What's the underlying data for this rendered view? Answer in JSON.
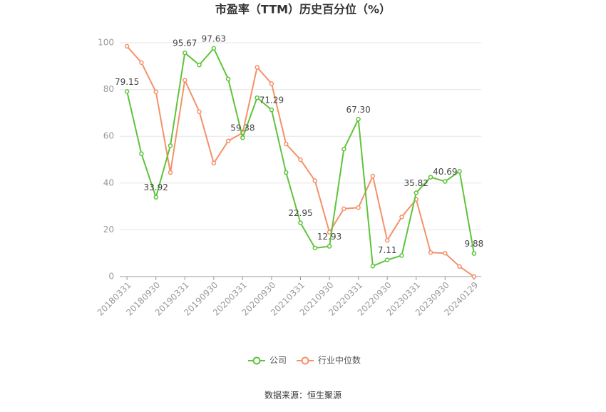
{
  "chart_data": {
    "type": "line",
    "title": "市盈率（TTM）历史百分位（%）",
    "categories": [
      "20180331",
      null,
      "20180930",
      null,
      "20190331",
      null,
      "20190930",
      null,
      "20200331",
      null,
      "20200930",
      null,
      "20210331",
      null,
      "20210930",
      null,
      "20220331",
      null,
      "20220930",
      null,
      "20230331",
      null,
      "20230930",
      null,
      "20240129"
    ],
    "series": [
      {
        "name": "公司",
        "color": "#5ec43a",
        "values": [
          79.15,
          52.5,
          33.92,
          56,
          95.67,
          90.5,
          97.63,
          84.5,
          59.38,
          76.5,
          71.29,
          44.5,
          22.95,
          12.2,
          12.93,
          54.5,
          67.3,
          4.5,
          7.11,
          9,
          35.82,
          42.5,
          40.69,
          45,
          9.88
        ],
        "value_labels": [
          "79.15",
          null,
          "33.92",
          null,
          "95.67",
          null,
          "97.63",
          null,
          "59.38",
          null,
          "71.29",
          null,
          "22.95",
          null,
          "12.93",
          null,
          "67.30",
          null,
          "7.11",
          null,
          "35.82",
          null,
          "40.69",
          null,
          "9.88"
        ]
      },
      {
        "name": "行业中位数",
        "color": "#f4916a",
        "values": [
          98.5,
          91.5,
          79,
          44.5,
          84,
          70.5,
          48.5,
          58,
          61.5,
          89.5,
          82.5,
          56.7,
          50,
          41,
          19,
          29,
          29.5,
          43,
          15.5,
          25.5,
          33,
          10.3,
          10,
          4.3,
          0
        ]
      }
    ],
    "ylim": [
      0,
      100
    ],
    "yticks": [
      0,
      20,
      40,
      60,
      80,
      100
    ],
    "grid": true,
    "source": "数据来源：恒生聚源"
  }
}
